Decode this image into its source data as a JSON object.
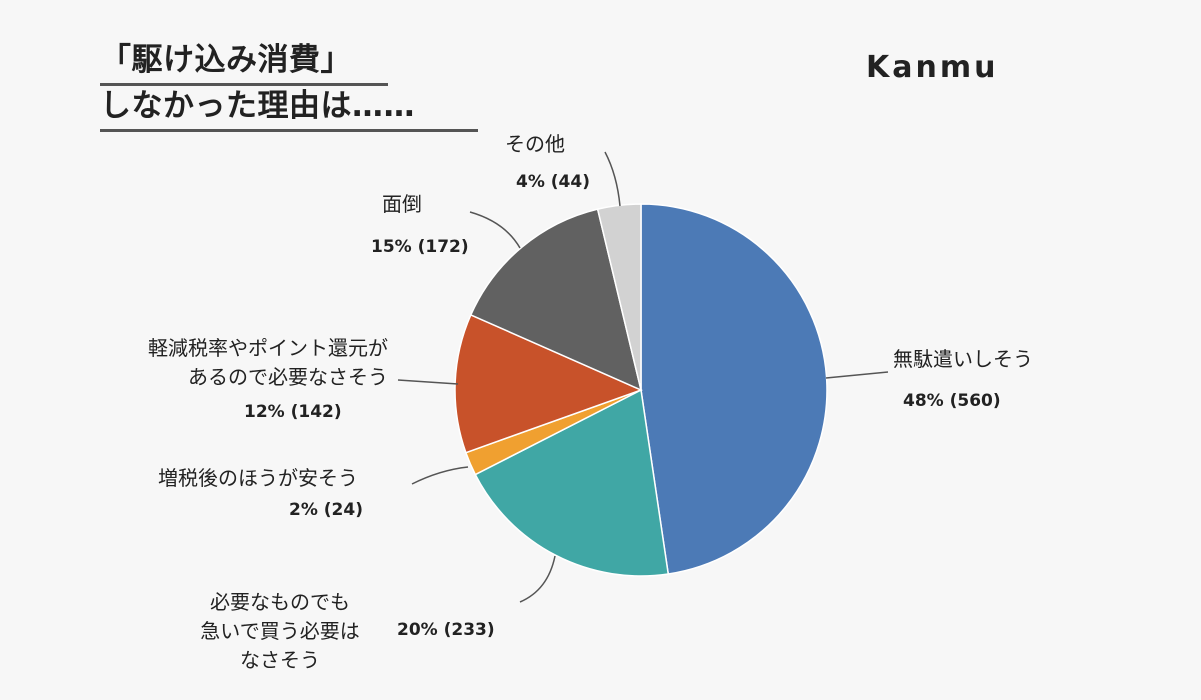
{
  "title": {
    "line1": "「駆け込み消費」",
    "line2": "しなかった理由は……"
  },
  "brand": "Kanmu",
  "chart_data": {
    "type": "pie",
    "title": "「駆け込み消費」しなかった理由は……",
    "start_angle_deg": 0,
    "direction": "clockwise",
    "slices": [
      {
        "name": "無駄遣いしそう",
        "label": "48% (560)",
        "percent": 48,
        "count": 560,
        "color": "#4c7ab6"
      },
      {
        "name": "必要なものでも急いで買う必要はなさそう",
        "label": "20% (233)",
        "percent": 20,
        "count": 233,
        "color": "#40a7a5"
      },
      {
        "name": "増税後のほうが安そう",
        "label": "2% (24)",
        "percent": 2,
        "count": 24,
        "color": "#f0a030"
      },
      {
        "name": "軽減税率やポイント還元があるので必要なさそう",
        "label": "12% (142)",
        "percent": 12,
        "count": 142,
        "color": "#c8522a"
      },
      {
        "name": "面倒",
        "label": "15% (172)",
        "percent": 15,
        "count": 172,
        "color": "#616161"
      },
      {
        "name": "その他",
        "label": "4% (44)",
        "percent": 4,
        "count": 44,
        "color": "#d2d2d2"
      }
    ]
  },
  "labels": {
    "s0": {
      "lines": [
        "無駄遣いしそう"
      ]
    },
    "s1": {
      "lines": [
        "必要なものでも",
        "急いで買う必要は",
        "なさそう"
      ]
    },
    "s2": {
      "lines": [
        "増税後のほうが安そう"
      ]
    },
    "s3": {
      "lines": [
        "軽減税率やポイント還元が",
        "あるので必要なさそう"
      ]
    },
    "s4": {
      "lines": [
        "面倒"
      ]
    },
    "s5": {
      "lines": [
        "その他"
      ]
    }
  }
}
